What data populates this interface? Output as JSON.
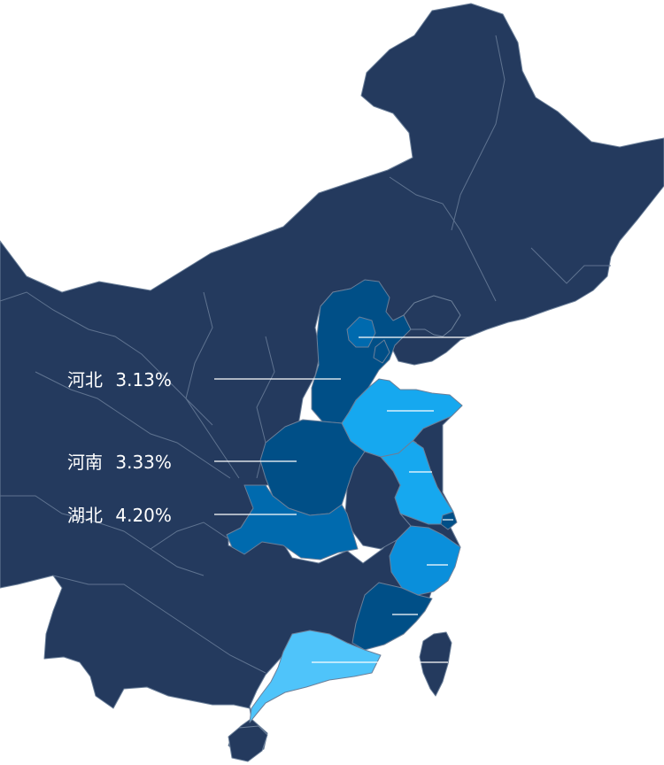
{
  "map": {
    "colors": {
      "base": "#243a5e",
      "border": "#6b7f99",
      "leader_line": "#ffffff",
      "label_text": "#ffffff",
      "level1": "#004f87",
      "level2": "#006aae",
      "level3": "#0a8fdb",
      "level4": "#16a8ef",
      "level5": "#4fc4fa"
    },
    "labels": [
      {
        "province": "河北",
        "value": "3.13%"
      },
      {
        "province": "河南",
        "value": "3.33%"
      },
      {
        "province": "湖北",
        "value": "4.20%"
      }
    ]
  }
}
